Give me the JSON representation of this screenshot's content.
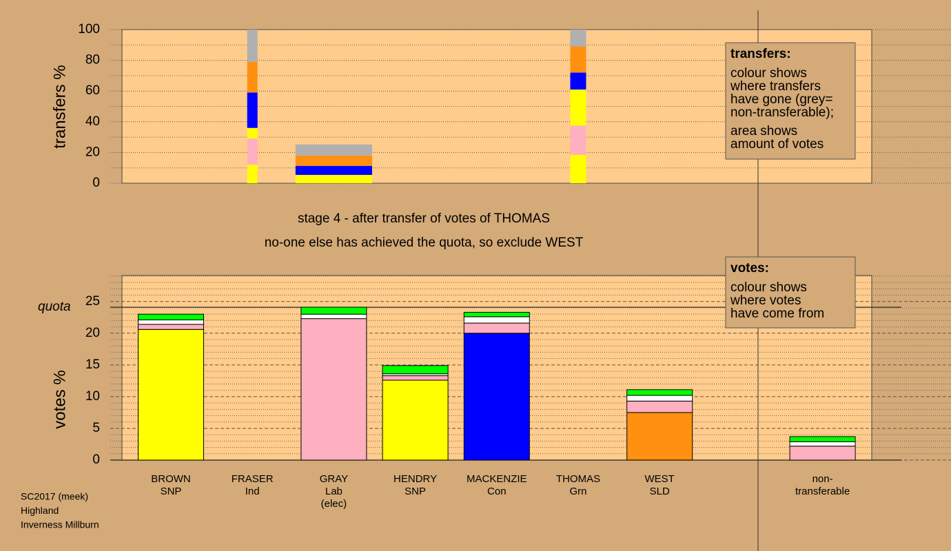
{
  "chart_data": [
    {
      "type": "bar",
      "stacked": true,
      "ylabel": "transfers %",
      "ylim": [
        0,
        100
      ],
      "yticks": [
        0,
        20,
        40,
        60,
        80,
        100
      ],
      "amounts": [
        null,
        1.5,
        2.8,
        null,
        null,
        2.3,
        null,
        null,
        null
      ],
      "series": [
        {
          "color": "#ffff00",
          "values": [
            null,
            12,
            2.8,
            null,
            null,
            18.5,
            null,
            null,
            null
          ]
        },
        {
          "color": "#ffb0c0",
          "values": [
            null,
            17,
            0,
            null,
            null,
            19,
            null,
            null,
            null
          ]
        },
        {
          "color": "#ffff00",
          "values": [
            null,
            7,
            2.6,
            null,
            null,
            23.5,
            null,
            null,
            null
          ]
        },
        {
          "color": "#0000ff",
          "values": [
            null,
            23,
            5.9,
            null,
            null,
            11,
            null,
            null,
            null
          ]
        },
        {
          "color": "#ff9010",
          "values": [
            null,
            20,
            6.7,
            null,
            null,
            17,
            null,
            null,
            null
          ]
        },
        {
          "color": "#b0b0b0",
          "values": [
            null,
            21,
            7.2,
            null,
            null,
            11,
            null,
            null,
            null
          ]
        }
      ],
      "legend": {
        "title": "transfers:",
        "paragraphs": [
          [
            "colour shows",
            "where transfers",
            "have gone (grey=",
            "non-transferable);"
          ],
          [
            "area shows",
            "amount of votes"
          ]
        ]
      }
    },
    {
      "type": "bar",
      "stacked": true,
      "ylabel": "votes %",
      "ylim": [
        0,
        29.1
      ],
      "yticks": [
        0,
        5,
        10,
        15,
        20,
        25
      ],
      "quota": 24.1,
      "quota_label": "quota",
      "categories": [
        [
          "BROWN",
          "SNP"
        ],
        [
          "FRASER",
          "Ind"
        ],
        [
          "GRAY",
          "Lab",
          "(elec)"
        ],
        [
          "HENDRY",
          "SNP"
        ],
        [
          "MACKENZIE",
          "Con"
        ],
        [
          "THOMAS",
          "Grn"
        ],
        [
          "WEST",
          "SLD"
        ],
        null,
        [
          "non-",
          "transferable"
        ]
      ],
      "series": [
        {
          "colors": [
            "#ffff00",
            "#ffffff",
            "#ffb0c0",
            "#ffff00",
            "#0000ff",
            "#00ff00",
            "#ff9010",
            null,
            "#b0b0b0"
          ],
          "values": [
            20.6,
            0,
            22.3,
            12.6,
            20,
            0,
            7.5,
            null,
            0
          ]
        },
        {
          "color": "#ffb0c0",
          "values": [
            0.8,
            0,
            0,
            0.7,
            1.6,
            0,
            1.8,
            null,
            2.2
          ]
        },
        {
          "color": "#ffffff",
          "values": [
            0.7,
            0,
            0.7,
            0.3,
            1.0,
            0,
            0.9,
            null,
            0.7
          ]
        },
        {
          "color": "#00ff00",
          "values": [
            0.9,
            0,
            1.1,
            1.3,
            0.7,
            0,
            0.9,
            null,
            0.8
          ]
        }
      ],
      "legend": {
        "title": "votes:",
        "paragraphs": [
          [
            "colour shows",
            "where votes",
            "have come from"
          ]
        ]
      }
    }
  ],
  "captions": [
    "stage 4 - after transfer of votes of THOMAS",
    "no-one else has achieved the quota, so exclude WEST"
  ],
  "footer": [
    "SC2017 (meek)",
    "Highland",
    "Inverness Millburn"
  ]
}
